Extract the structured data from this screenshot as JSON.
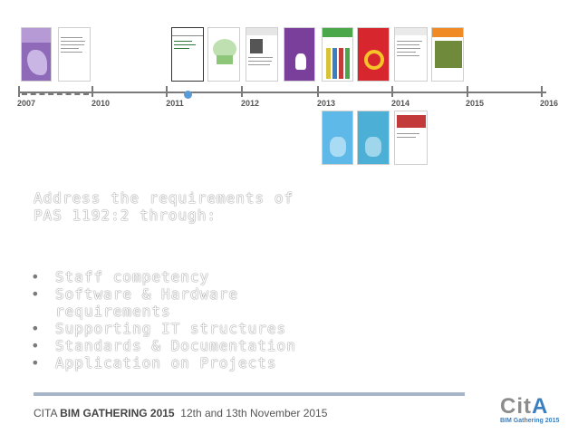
{
  "slide": {
    "timeline": {
      "years": [
        "2007",
        "2010",
        "2011",
        "2012",
        "2013",
        "2014",
        "2015",
        "2016"
      ]
    },
    "documents": [
      {
        "name": "doc-purple-brochure",
        "color": "#8e6ab8"
      },
      {
        "name": "doc-text-report",
        "color": "#ffffff"
      },
      {
        "name": "doc-construction-strategy",
        "color": "#ffffff"
      },
      {
        "name": "doc-green-illustration",
        "color": "#ffffff"
      },
      {
        "name": "doc-portrait-report",
        "color": "#ffffff"
      },
      {
        "name": "doc-purple-hand",
        "color": "#7a3f9a"
      },
      {
        "name": "doc-green-pencils",
        "color": "#4aa84a"
      },
      {
        "name": "doc-red-donut",
        "color": "#d8262e"
      },
      {
        "name": "doc-standard-text",
        "color": "#ffffff"
      },
      {
        "name": "doc-orange-photo",
        "color": "#f08a24"
      },
      {
        "name": "doc-blue-butterfly-1",
        "color": "#5eb8e8"
      },
      {
        "name": "doc-blue-butterfly-2",
        "color": "#4cb0d6"
      },
      {
        "name": "doc-red-building",
        "color": "#c23a3a"
      }
    ],
    "heading": {
      "line1": "Address the requirements of",
      "line2": "PAS 1192:2 through:"
    },
    "bullets": [
      "Staff competency",
      "Software & Hardware requirements",
      "Supporting IT structures",
      "Standards & Documentation",
      "Application on Projects"
    ],
    "footer": {
      "event_prefix": "CITA ",
      "event_name": "BIM GATHERING 2015",
      "event_dates": "12th and 13th November 2015",
      "logo_text_main": "Cit",
      "logo_text_accent": "A",
      "logo_subtitle": "BIM Gathering 2015"
    }
  }
}
